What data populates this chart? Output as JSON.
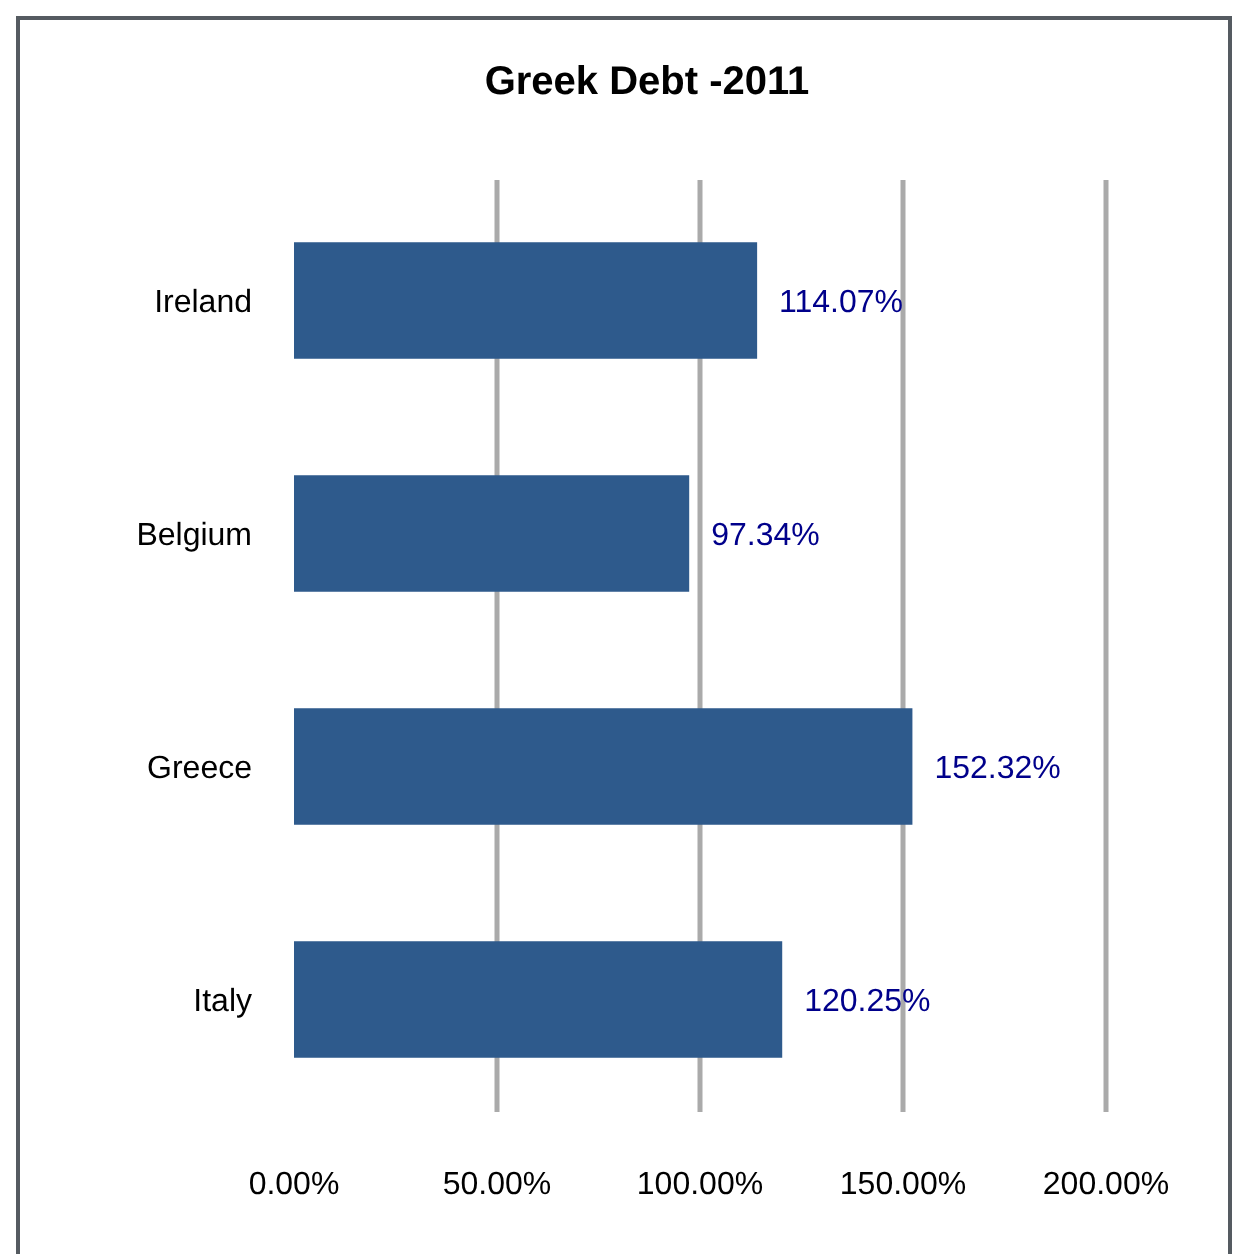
{
  "chart_data": {
    "type": "bar",
    "title": "Greek Debt -2011",
    "orientation": "horizontal",
    "categories": [
      "Ireland",
      "Belgium",
      "Greece",
      "Italy"
    ],
    "values": [
      114.07,
      97.34,
      152.32,
      120.25
    ],
    "color": "#2e5a8c",
    "value_labels": [
      "114.07%",
      "97.34%",
      "152.32%",
      "120.25%"
    ],
    "xlim": [
      0,
      200
    ],
    "xticks": [
      {
        "value": 0,
        "label": "0.00%"
      },
      {
        "value": 50,
        "label": "50.00%"
      },
      {
        "value": 100,
        "label": "100.00%"
      },
      {
        "value": 150,
        "label": "150.00%"
      },
      {
        "value": 200,
        "label": "200.00%"
      }
    ],
    "grid": "x"
  }
}
